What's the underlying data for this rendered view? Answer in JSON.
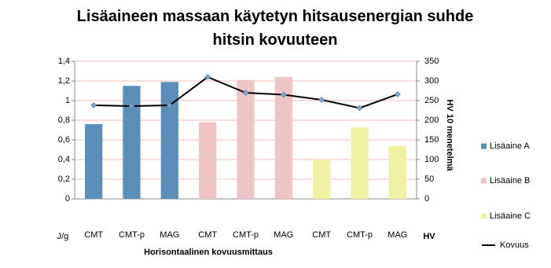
{
  "chart_data": {
    "type": "bar",
    "title": "Lisäaineen massaan käytetyn hitsausenergian suhde hitsin kovuuteen",
    "x_label": "Horisontaalinen kovuusmittaus",
    "y_label": "J/g",
    "y2_label": "HV 10 menetelmä",
    "y2_unit": "HV",
    "categories": [
      "CMT",
      "CMT-p",
      "MAG",
      "CMT",
      "CMT-p",
      "MAG",
      "CMT",
      "CMT-p",
      "MAG"
    ],
    "series": [
      {
        "name": "Lisäaine A",
        "type": "bar",
        "color": "#5b8fba",
        "values": [
          0.76,
          1.15,
          1.19,
          null,
          null,
          null,
          null,
          null,
          null
        ]
      },
      {
        "name": "Lisäaine B",
        "type": "bar",
        "color": "#efc4c4",
        "values": [
          null,
          null,
          null,
          0.78,
          1.21,
          1.24,
          null,
          null,
          null
        ]
      },
      {
        "name": "Lisäaine C",
        "type": "bar",
        "color": "#eef0a2",
        "values": [
          null,
          null,
          null,
          null,
          null,
          null,
          0.4,
          0.73,
          0.54
        ]
      },
      {
        "name": "Kovuus",
        "type": "line",
        "axis": "y2",
        "color": "#000000",
        "values": [
          238,
          236,
          238,
          310,
          270,
          265,
          252,
          231,
          266
        ]
      }
    ],
    "ylim": [
      0,
      1.4
    ],
    "yticks": [
      0,
      {
        "value": 0.2,
        "label": "0,2"
      },
      {
        "value": 0.4,
        "label": "0,4"
      },
      {
        "value": 0.6,
        "label": "0,6"
      },
      {
        "value": 0.8,
        "label": "0,8"
      },
      1,
      {
        "value": 1.2,
        "label": "1,2"
      },
      {
        "value": 1.4,
        "label": "1,4"
      }
    ],
    "y2lim": [
      0,
      350
    ],
    "y2ticks": [
      0,
      50,
      100,
      150,
      200,
      250,
      300,
      350
    ],
    "grid": true,
    "legend": "right"
  }
}
